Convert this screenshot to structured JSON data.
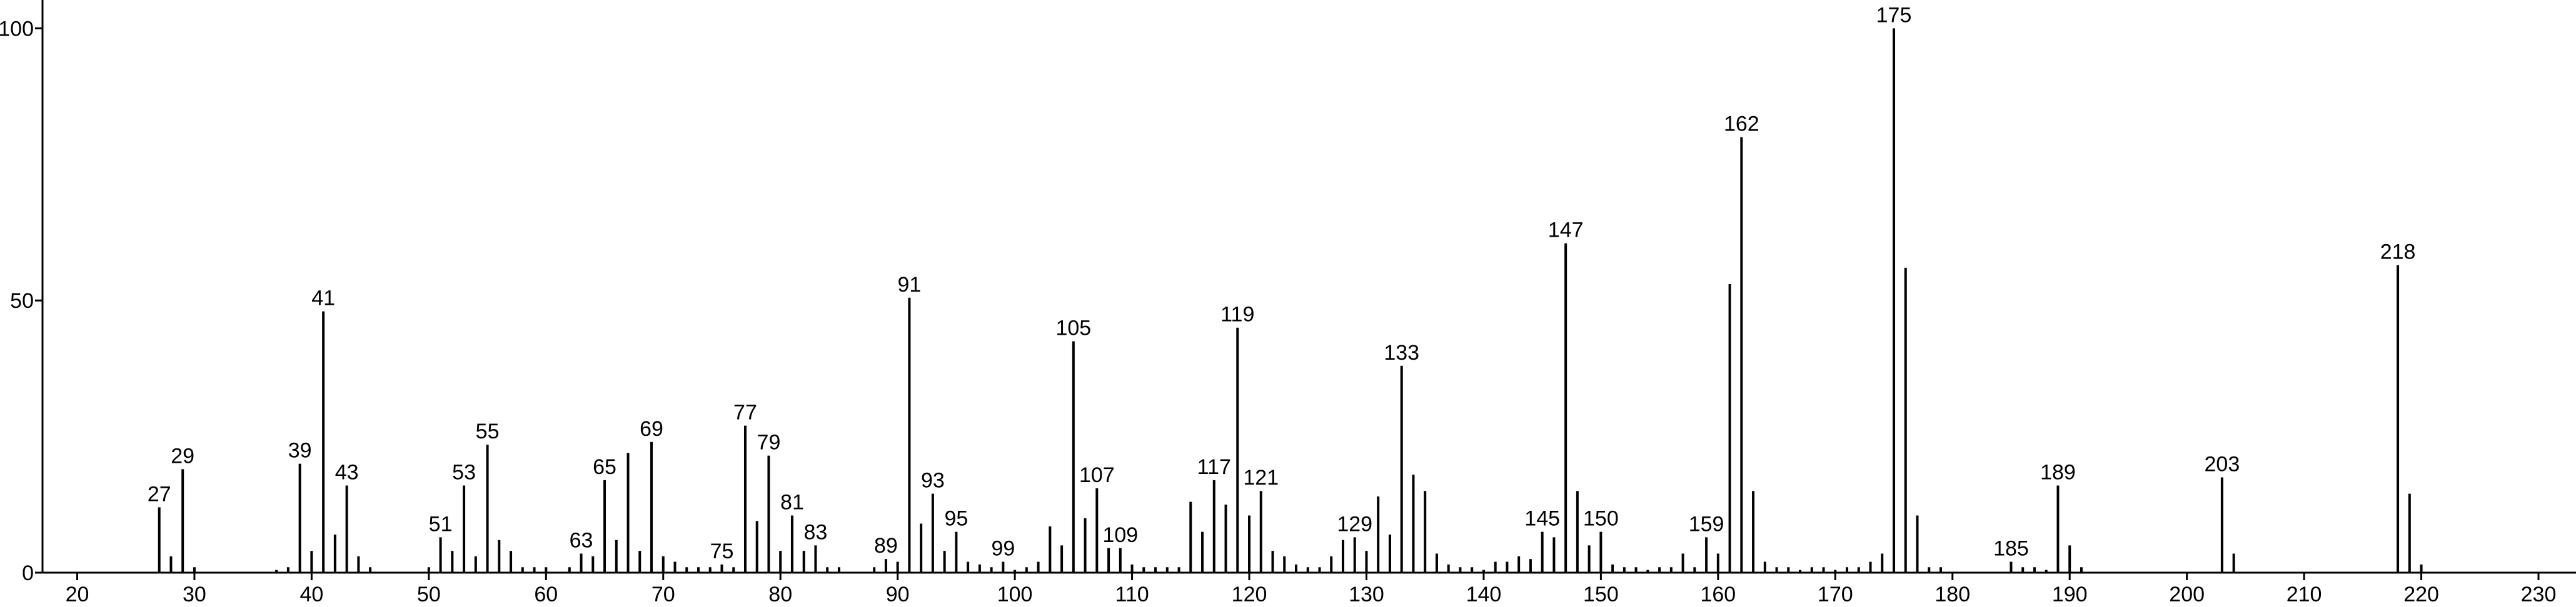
{
  "chart_data": {
    "type": "stick",
    "x": [
      27,
      28,
      29,
      30,
      37,
      38,
      39,
      40,
      41,
      42,
      43,
      44,
      45,
      50,
      51,
      52,
      53,
      54,
      55,
      56,
      57,
      58,
      59,
      60,
      62,
      63,
      64,
      65,
      66,
      67,
      68,
      69,
      70,
      71,
      72,
      73,
      74,
      75,
      76,
      77,
      78,
      79,
      80,
      81,
      82,
      83,
      84,
      85,
      88,
      89,
      90,
      91,
      92,
      93,
      94,
      95,
      96,
      97,
      98,
      99,
      100,
      101,
      102,
      103,
      104,
      105,
      106,
      107,
      108,
      109,
      110,
      111,
      112,
      113,
      114,
      115,
      116,
      117,
      118,
      119,
      120,
      121,
      122,
      123,
      124,
      125,
      126,
      127,
      128,
      129,
      130,
      131,
      132,
      133,
      134,
      135,
      136,
      137,
      138,
      139,
      140,
      141,
      142,
      143,
      144,
      145,
      146,
      147,
      148,
      149,
      150,
      151,
      152,
      153,
      154,
      155,
      156,
      157,
      158,
      159,
      160,
      161,
      162,
      163,
      164,
      165,
      166,
      167,
      168,
      169,
      170,
      171,
      172,
      173,
      174,
      175,
      176,
      177,
      178,
      179,
      185,
      186,
      187,
      188,
      189,
      190,
      191,
      203,
      204,
      218,
      219,
      220
    ],
    "values": [
      12,
      3,
      19,
      1,
      0.5,
      1,
      20,
      4,
      48,
      7,
      16,
      3,
      1,
      1,
      6.5,
      4,
      16,
      3,
      23.5,
      6,
      4,
      1,
      1,
      1,
      1,
      3.5,
      3,
      17,
      6,
      22,
      4,
      24,
      3,
      2,
      1,
      1,
      1,
      1.5,
      1,
      27,
      9.5,
      21.5,
      4,
      10.5,
      4,
      5,
      1,
      1,
      1,
      2.5,
      2,
      50.5,
      9,
      14.5,
      4,
      7.5,
      2,
      1.5,
      1,
      2,
      0.5,
      1,
      2,
      8.5,
      5,
      42.5,
      10,
      15.5,
      4.5,
      4.5,
      1.5,
      1,
      1,
      1,
      1,
      13,
      7.5,
      17,
      12.5,
      45,
      10.5,
      15,
      4,
      3,
      1.5,
      1,
      1,
      3,
      6,
      6.5,
      4,
      14,
      7,
      38,
      18,
      15,
      3.5,
      1.5,
      1,
      1,
      0.5,
      2,
      2,
      3,
      2.5,
      7.5,
      6.5,
      60.5,
      15,
      5,
      7.5,
      1.5,
      1,
      1,
      0.5,
      1,
      1,
      3.5,
      1,
      6.5,
      3.5,
      53,
      80,
      15,
      2,
      1,
      1,
      0.5,
      1,
      1,
      0.5,
      1,
      1,
      2,
      3.5,
      100,
      56,
      10.5,
      1,
      1,
      2,
      1,
      1,
      0.5,
      16,
      5,
      1,
      17.5,
      3.5,
      56.5,
      14.5,
      1.5
    ],
    "point_labels": [
      27,
      null,
      29,
      null,
      null,
      null,
      39,
      null,
      41,
      null,
      43,
      null,
      null,
      null,
      51,
      null,
      53,
      null,
      55,
      null,
      null,
      null,
      null,
      null,
      null,
      63,
      null,
      65,
      null,
      null,
      null,
      69,
      null,
      null,
      null,
      null,
      null,
      75,
      null,
      77,
      null,
      79,
      null,
      81,
      null,
      83,
      null,
      null,
      null,
      89,
      null,
      91,
      null,
      93,
      null,
      95,
      null,
      null,
      null,
      99,
      null,
      null,
      null,
      null,
      null,
      105,
      null,
      107,
      null,
      109,
      null,
      null,
      null,
      null,
      null,
      null,
      null,
      117,
      null,
      119,
      null,
      121,
      null,
      null,
      null,
      null,
      null,
      null,
      null,
      129,
      null,
      null,
      null,
      133,
      null,
      null,
      null,
      null,
      null,
      null,
      null,
      null,
      null,
      null,
      null,
      145,
      null,
      147,
      null,
      null,
      150,
      null,
      null,
      null,
      null,
      null,
      null,
      null,
      null,
      159,
      null,
      null,
      162,
      null,
      null,
      null,
      null,
      null,
      null,
      null,
      null,
      null,
      null,
      null,
      null,
      175,
      null,
      null,
      null,
      null,
      185,
      null,
      null,
      null,
      189,
      null,
      null,
      203,
      null,
      218,
      null,
      null
    ],
    "color": "#000000",
    "xlim": [
      17.04,
      233.2
    ],
    "ylim": [
      0,
      105.2
    ],
    "xticks": [
      20,
      30,
      40,
      50,
      60,
      70,
      80,
      90,
      100,
      110,
      120,
      130,
      140,
      150,
      160,
      170,
      180,
      190,
      200,
      210,
      220,
      230
    ],
    "yticks": [
      0,
      50,
      100
    ]
  }
}
